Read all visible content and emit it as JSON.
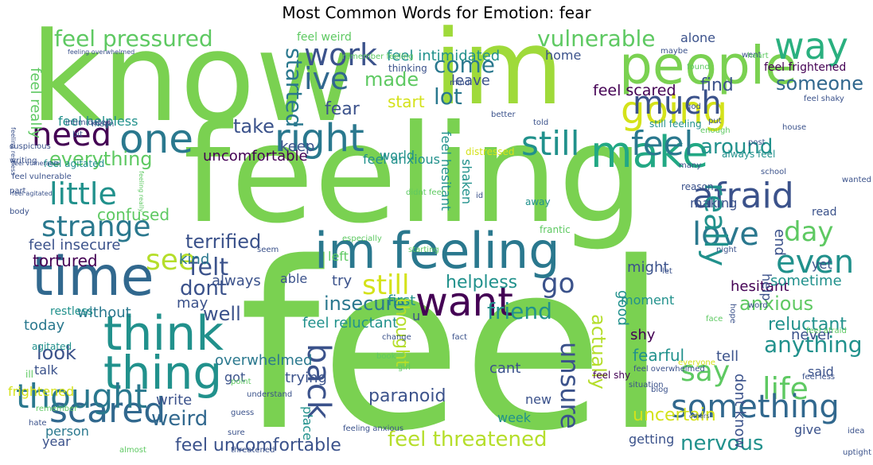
{
  "title": "Most Common Words for Emotion: fear",
  "palette": {
    "violet": "#440154",
    "indigo": "#3b528b",
    "teal": "#21918c",
    "green": "#5ec962",
    "lime": "#7ad151",
    "yellow": "#d4e21a"
  },
  "words": [
    {
      "text": "feel",
      "color": "#7ad151"
    },
    {
      "text": "feeling",
      "color": "#7ad151"
    },
    {
      "text": "know",
      "color": "#7ad151"
    },
    {
      "text": "im",
      "color": "#9fda3a"
    },
    {
      "text": "im feeling",
      "color": "#2a788e"
    },
    {
      "text": "people",
      "color": "#7ad151"
    },
    {
      "text": "time",
      "color": "#31688e"
    },
    {
      "text": "think",
      "color": "#21918c"
    },
    {
      "text": "thing",
      "color": "#21918c"
    },
    {
      "text": "want",
      "color": "#440154"
    },
    {
      "text": "make",
      "color": "#22a884"
    },
    {
      "text": "going",
      "color": "#d4e21a"
    },
    {
      "text": "way",
      "color": "#2ab07f"
    },
    {
      "text": "one",
      "color": "#2a788e"
    },
    {
      "text": "need",
      "color": "#440154"
    },
    {
      "text": "much",
      "color": "#3b528b"
    },
    {
      "text": "right",
      "color": "#2a788e"
    },
    {
      "text": "still",
      "color": "#21918c"
    },
    {
      "text": "feel",
      "color": "#2a788e"
    },
    {
      "text": "afraid",
      "color": "#3b528b"
    },
    {
      "text": "ive",
      "color": "#31688e"
    },
    {
      "text": "work",
      "color": "#3b528b"
    },
    {
      "text": "little",
      "color": "#21918c"
    },
    {
      "text": "strange",
      "color": "#2a788e"
    },
    {
      "text": "see",
      "color": "#b5de2b"
    },
    {
      "text": "say",
      "color": "#5ec962"
    },
    {
      "text": "life",
      "color": "#5ec962"
    },
    {
      "text": "day",
      "color": "#5ec962"
    },
    {
      "text": "love",
      "color": "#2a788e"
    },
    {
      "text": "even",
      "color": "#21918c"
    },
    {
      "text": "really",
      "color": "#21918c"
    },
    {
      "text": "go",
      "color": "#3b528b"
    },
    {
      "text": "still",
      "color": "#d4e21a"
    },
    {
      "text": "scared",
      "color": "#31688e"
    },
    {
      "text": "thought",
      "color": "#2a788e"
    },
    {
      "text": "back",
      "color": "#3b528b"
    },
    {
      "text": "something",
      "color": "#31688e"
    },
    {
      "text": "unsure",
      "color": "#3b528b"
    },
    {
      "text": "feel pressured",
      "color": "#5ec962"
    },
    {
      "text": "vulnerable",
      "color": "#5ec962"
    },
    {
      "text": "come",
      "color": "#2a788e"
    },
    {
      "text": "made",
      "color": "#5ec962"
    },
    {
      "text": "feel intimidated",
      "color": "#21918c"
    },
    {
      "text": "everything",
      "color": "#5ec962"
    },
    {
      "text": "take",
      "color": "#3b528b"
    },
    {
      "text": "lot",
      "color": "#2a788e"
    },
    {
      "text": "started",
      "color": "#2a788e"
    },
    {
      "text": "around",
      "color": "#21918c"
    },
    {
      "text": "find",
      "color": "#3b528b"
    },
    {
      "text": "someone",
      "color": "#31688e"
    },
    {
      "text": "feel scared",
      "color": "#440154"
    },
    {
      "text": "fear",
      "color": "#3b528b"
    },
    {
      "text": "start",
      "color": "#d4e21a"
    },
    {
      "text": "leave",
      "color": "#3b528b"
    },
    {
      "text": "home",
      "color": "#3b528b"
    },
    {
      "text": "alone",
      "color": "#3b528b"
    },
    {
      "text": "uncomfortable",
      "color": "#440154"
    },
    {
      "text": "keep",
      "color": "#3b528b"
    },
    {
      "text": "world",
      "color": "#21918c"
    },
    {
      "text": "feel hesitant",
      "color": "#21918c"
    },
    {
      "text": "shaken",
      "color": "#21918c"
    },
    {
      "text": "making",
      "color": "#3b528b"
    },
    {
      "text": "read",
      "color": "#3b528b"
    },
    {
      "text": "confused",
      "color": "#5ec962"
    },
    {
      "text": "terrified",
      "color": "#3b528b"
    },
    {
      "text": "feel insecure",
      "color": "#3b528b"
    },
    {
      "text": "tortured",
      "color": "#440154"
    },
    {
      "text": "felt",
      "color": "#3b528b"
    },
    {
      "text": "dont",
      "color": "#3b528b"
    },
    {
      "text": "well",
      "color": "#3b528b"
    },
    {
      "text": "kind",
      "color": "#2a788e"
    },
    {
      "text": "insecure",
      "color": "#2a788e"
    },
    {
      "text": "helpless",
      "color": "#21918c"
    },
    {
      "text": "friend",
      "color": "#21918c"
    },
    {
      "text": "anxious",
      "color": "#5ec962"
    },
    {
      "text": "reluctant",
      "color": "#21918c"
    },
    {
      "text": "anything",
      "color": "#21918c"
    },
    {
      "text": "hesitant",
      "color": "#440154"
    },
    {
      "text": "sometime",
      "color": "#21918c"
    },
    {
      "text": "might",
      "color": "#3b528b"
    },
    {
      "text": "moment",
      "color": "#21918c"
    },
    {
      "text": "shy",
      "color": "#440154"
    },
    {
      "text": "fearful",
      "color": "#21918c"
    },
    {
      "text": "feel reluctant",
      "color": "#21918c"
    },
    {
      "text": "today",
      "color": "#2a788e"
    },
    {
      "text": "without",
      "color": "#2a788e"
    },
    {
      "text": "look",
      "color": "#3b528b"
    },
    {
      "text": "overwhelmed",
      "color": "#2a788e"
    },
    {
      "text": "trying",
      "color": "#3b528b"
    },
    {
      "text": "paranoid",
      "color": "#3b528b"
    },
    {
      "text": "weird",
      "color": "#31688e"
    },
    {
      "text": "frightened",
      "color": "#d4e21a"
    },
    {
      "text": "write",
      "color": "#3b528b"
    },
    {
      "text": "got",
      "color": "#3b528b"
    },
    {
      "text": "feel threatened",
      "color": "#b5de2b"
    },
    {
      "text": "feel uncomfortable",
      "color": "#3b528b"
    },
    {
      "text": "nervous",
      "color": "#21918c"
    },
    {
      "text": "uncertain",
      "color": "#d4e21a"
    },
    {
      "text": "give",
      "color": "#3b528b"
    },
    {
      "text": "getting",
      "color": "#3b528b"
    },
    {
      "text": "never",
      "color": "#3b528b"
    },
    {
      "text": "said",
      "color": "#3b528b"
    },
    {
      "text": "tell",
      "color": "#3b528b"
    },
    {
      "text": "dont know",
      "color": "#3b528b"
    },
    {
      "text": "cant",
      "color": "#3b528b"
    },
    {
      "text": "new",
      "color": "#3b528b"
    },
    {
      "text": "week",
      "color": "#21918c"
    },
    {
      "text": "actually",
      "color": "#b5de2b"
    },
    {
      "text": "good",
      "color": "#21918c"
    },
    {
      "text": "help",
      "color": "#3b528b"
    },
    {
      "text": "end",
      "color": "#3b528b"
    },
    {
      "text": "yet",
      "color": "#3b528b"
    },
    {
      "text": "may",
      "color": "#3b528b"
    },
    {
      "text": "left",
      "color": "#5ec962"
    },
    {
      "text": "able",
      "color": "#3b528b"
    },
    {
      "text": "try",
      "color": "#3b528b"
    },
    {
      "text": "always",
      "color": "#3b528b"
    },
    {
      "text": "first",
      "color": "#21918c"
    },
    {
      "text": "u",
      "color": "#3b528b"
    },
    {
      "text": "thought",
      "color": "#b5de2b"
    },
    {
      "text": "place",
      "color": "#21918c"
    },
    {
      "text": "person",
      "color": "#2a788e"
    },
    {
      "text": "talk",
      "color": "#3b528b"
    },
    {
      "text": "year",
      "color": "#3b528b"
    },
    {
      "text": "feel really",
      "color": "#5ec962"
    },
    {
      "text": "feel helpless",
      "color": "#21918c"
    },
    {
      "text": "feel weird",
      "color": "#5ec962"
    },
    {
      "text": "feel frightened",
      "color": "#440154"
    },
    {
      "text": "feel anxious",
      "color": "#21918c"
    },
    {
      "text": "feel agitated",
      "color": "#21918c"
    },
    {
      "text": "restless",
      "color": "#21918c"
    },
    {
      "text": "agitated",
      "color": "#21918c"
    },
    {
      "text": "distressed",
      "color": "#d4e21a"
    },
    {
      "text": "feel shy",
      "color": "#440154"
    },
    {
      "text": "frantic",
      "color": "#5ec962"
    },
    {
      "text": "reason",
      "color": "#3b528b"
    },
    {
      "text": "away",
      "color": "#21918c"
    },
    {
      "text": "always feel",
      "color": "#21918c"
    },
    {
      "text": "still feeling",
      "color": "#21918c"
    },
    {
      "text": "feeling anxious",
      "color": "#3b528b"
    },
    {
      "text": "feel shaky",
      "color": "#3b528b"
    },
    {
      "text": "feel overwhelmed",
      "color": "#3b528b"
    },
    {
      "text": "feel afraid",
      "color": "#5ec962"
    },
    {
      "text": "feel less",
      "color": "#3b528b"
    },
    {
      "text": "feel vulnerable",
      "color": "#3b528b"
    },
    {
      "text": "feeling overwhelmed",
      "color": "#3b528b"
    },
    {
      "text": "feeling restless",
      "color": "#3b528b"
    },
    {
      "text": "feeling really",
      "color": "#5ec962"
    },
    {
      "text": "feel agitated",
      "color": "#3b528b"
    },
    {
      "text": "remember feeling",
      "color": "#5ec962"
    },
    {
      "text": "thinking",
      "color": "#3b528b"
    },
    {
      "text": "mind",
      "color": "#3b528b"
    },
    {
      "text": "better",
      "color": "#3b528b"
    },
    {
      "text": "told",
      "color": "#3b528b"
    },
    {
      "text": "put",
      "color": "#3b528b"
    },
    {
      "text": "god",
      "color": "#3b528b"
    },
    {
      "text": "found",
      "color": "#5ec962"
    },
    {
      "text": "maybe",
      "color": "#3b528b"
    },
    {
      "text": "went",
      "color": "#3b528b"
    },
    {
      "text": "heart",
      "color": "#5ec962"
    },
    {
      "text": "house",
      "color": "#3b528b"
    },
    {
      "text": "post",
      "color": "#3b528b"
    },
    {
      "text": "many",
      "color": "#3b528b"
    },
    {
      "text": "school",
      "color": "#3b528b"
    },
    {
      "text": "wanted",
      "color": "#3b528b"
    },
    {
      "text": "others",
      "color": "#3b528b"
    },
    {
      "text": "night",
      "color": "#3b528b"
    },
    {
      "text": "word",
      "color": "#3b528b"
    },
    {
      "text": "face",
      "color": "#5ec962"
    },
    {
      "text": "everyone",
      "color": "#d4e21a"
    },
    {
      "text": "uptight",
      "color": "#3b528b"
    },
    {
      "text": "hope",
      "color": "#3b528b"
    },
    {
      "text": "let",
      "color": "#3b528b"
    },
    {
      "text": "blog",
      "color": "#3b528b"
    },
    {
      "text": "idea",
      "color": "#3b528b"
    },
    {
      "text": "girl",
      "color": "#5ec962"
    },
    {
      "text": "change",
      "color": "#3b528b"
    },
    {
      "text": "situation",
      "color": "#3b528b"
    },
    {
      "text": "enough",
      "color": "#5ec962"
    },
    {
      "text": "fact",
      "color": "#3b528b"
    },
    {
      "text": "didnt feel",
      "color": "#5ec962"
    },
    {
      "text": "id",
      "color": "#3b528b"
    },
    {
      "text": "especially",
      "color": "#5ec962"
    },
    {
      "text": "starting",
      "color": "#5ec962"
    },
    {
      "text": "seem",
      "color": "#3b528b"
    },
    {
      "text": "guess",
      "color": "#3b528b"
    },
    {
      "text": "understand",
      "color": "#3b528b"
    },
    {
      "text": "threatened",
      "color": "#3b528b"
    },
    {
      "text": "sure",
      "color": "#3b528b"
    },
    {
      "text": "point",
      "color": "#5ec962"
    },
    {
      "text": "almost",
      "color": "#5ec962"
    },
    {
      "text": "remember",
      "color": "#5ec962"
    },
    {
      "text": "book",
      "color": "#5ec962"
    },
    {
      "text": "ill",
      "color": "#5ec962"
    },
    {
      "text": "hate",
      "color": "#3b528b"
    },
    {
      "text": "body",
      "color": "#3b528b"
    },
    {
      "text": "part",
      "color": "#3b528b"
    },
    {
      "text": "writing",
      "color": "#3b528b"
    },
    {
      "text": "suspicious",
      "color": "#3b528b"
    },
    {
      "text": "intimidated",
      "color": "#3b528b"
    },
    {
      "text": "bit",
      "color": "#3b528b"
    },
    {
      "text": "mean",
      "color": "#3b528b"
    },
    {
      "text": "feel vulnerable",
      "color": "#3b528b"
    }
  ]
}
